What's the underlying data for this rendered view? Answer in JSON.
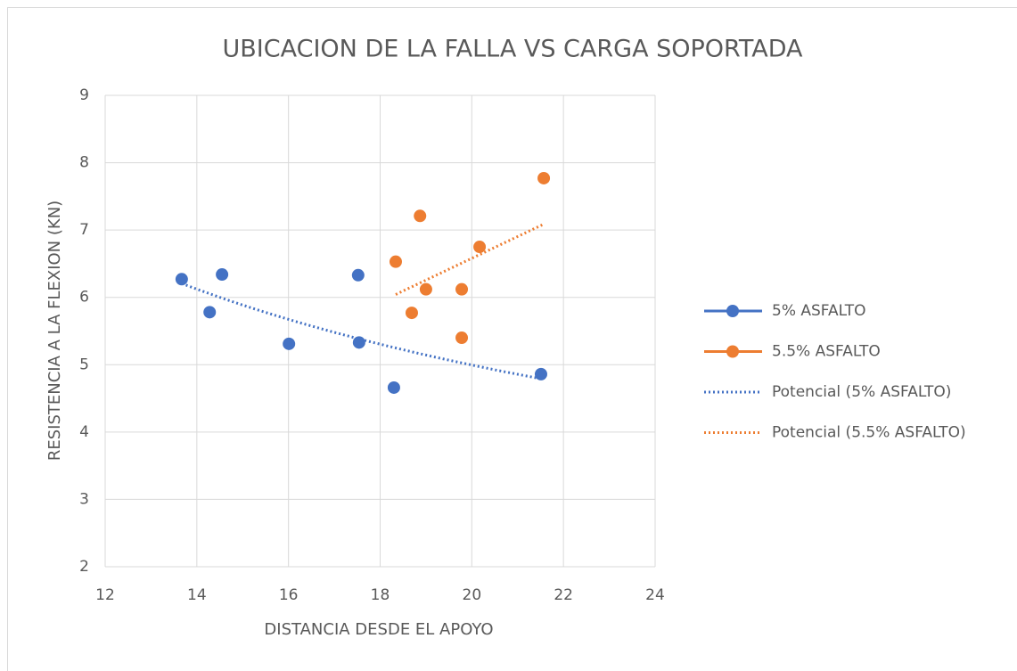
{
  "chart_data": {
    "type": "scatter",
    "title": "UBICACION DE LA FALLA VS CARGA SOPORTADA",
    "x_label": "DISTANCIA DESDE EL APOYO",
    "y_label": "RESISTENCIA A LA FLEXION (KN)",
    "xlim": [
      12,
      24
    ],
    "xticks": [
      12,
      14,
      16,
      18,
      20,
      22,
      24
    ],
    "ylim": [
      2,
      9
    ],
    "yticks": [
      2,
      3,
      4,
      5,
      6,
      7,
      8,
      9
    ],
    "grid": true,
    "legend": "right",
    "series": [
      {
        "name": "5% ASFALTO",
        "color": "#4472c4",
        "x": [
          13.67,
          14.28,
          14.55,
          16.01,
          17.52,
          17.54,
          18.3,
          21.51
        ],
        "values": [
          6.27,
          5.78,
          6.34,
          5.31,
          6.33,
          5.33,
          4.66,
          4.86
        ],
        "trendline": {
          "name": "Potencial (5% ASFALTO)",
          "type": "power"
        }
      },
      {
        "name": "5.5% ASFALTO",
        "color": "#ed7d31",
        "x": [
          18.34,
          18.87,
          19.0,
          18.69,
          19.78,
          19.78,
          20.17,
          21.57
        ],
        "values": [
          6.53,
          7.21,
          6.12,
          5.77,
          6.12,
          5.4,
          6.75,
          7.77
        ],
        "trendline": {
          "name": "Potencial (5.5% ASFALTO)",
          "type": "power"
        }
      }
    ]
  }
}
